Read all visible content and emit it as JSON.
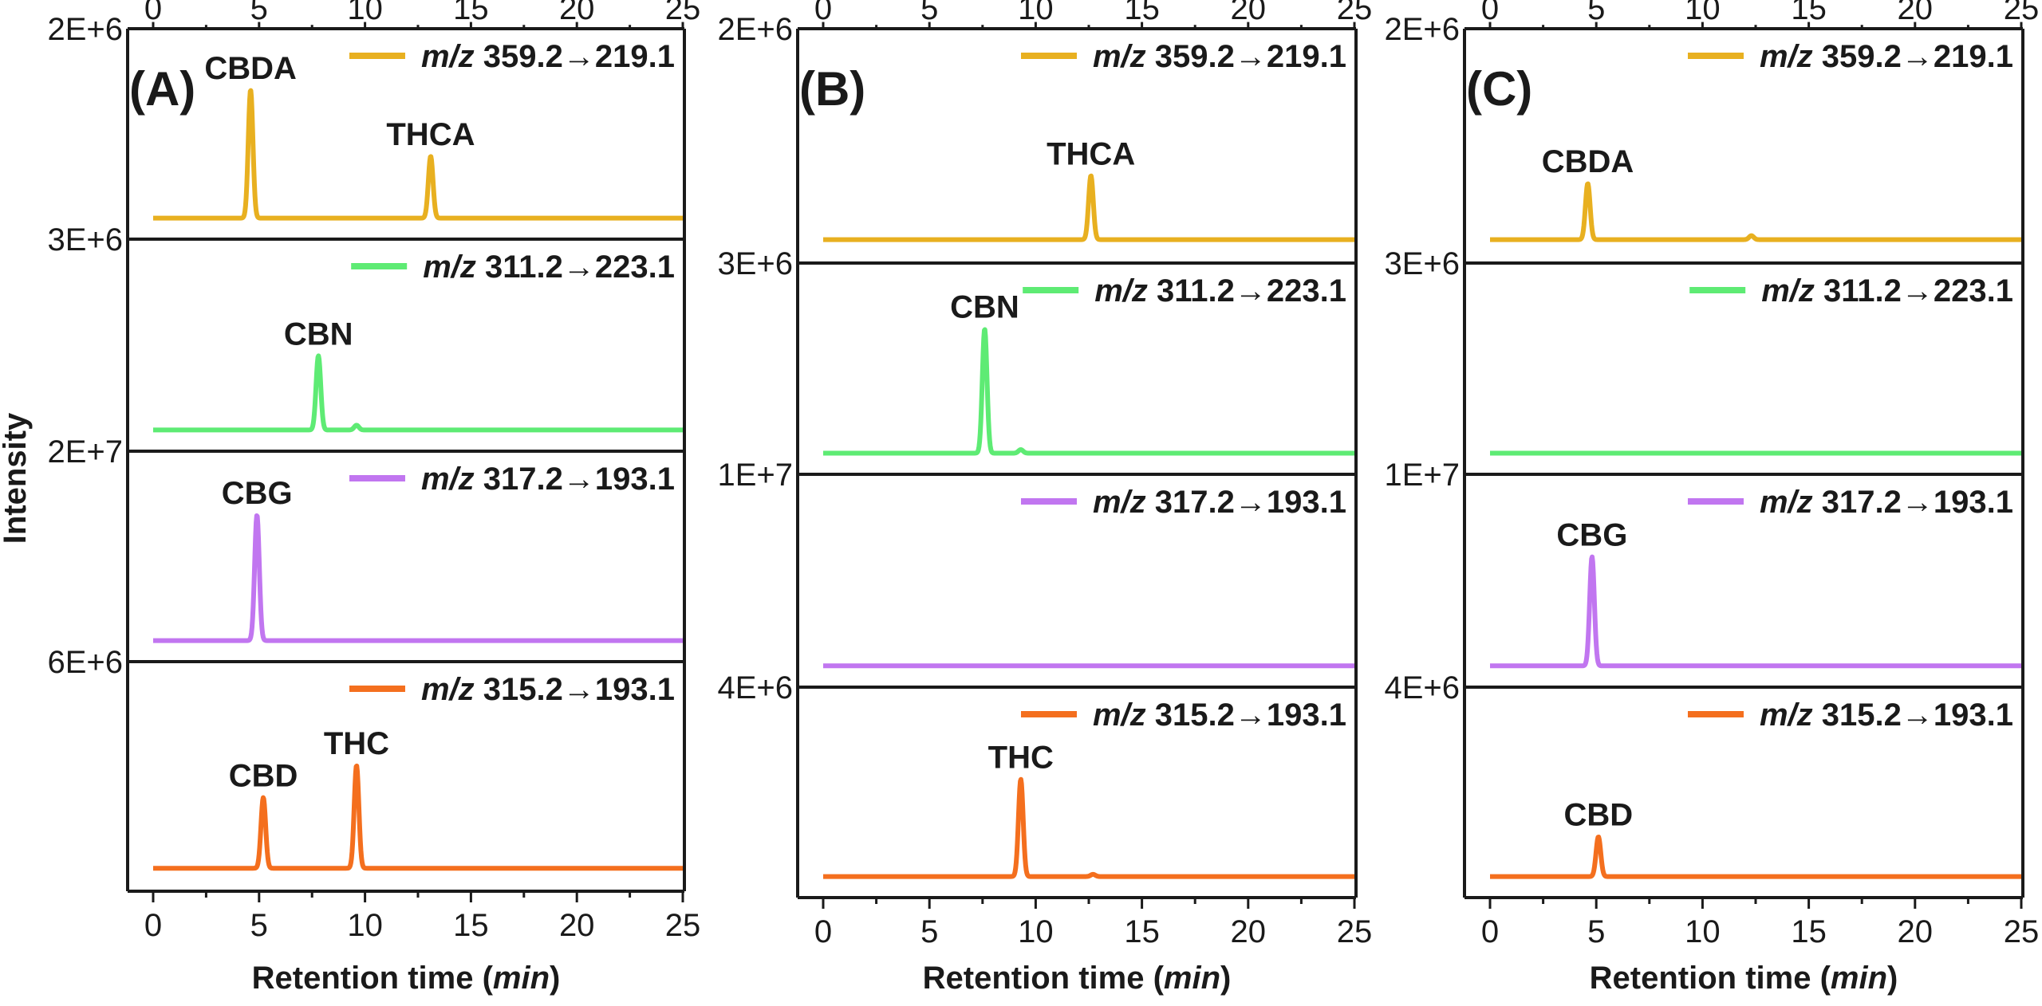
{
  "chart_data": {
    "type": "line",
    "ylabel": "Intensity",
    "xlabel": "Retention time",
    "xlabel_unit": "min",
    "xlim": [
      0,
      25
    ],
    "xticks": [
      0,
      5,
      10,
      15,
      20,
      25
    ],
    "grid": false,
    "legend_placement": "top-right",
    "colors": {
      "m359": "#E8B020",
      "m311": "#5EEB74",
      "m317": "#C176F0",
      "m315": "#F46F1E"
    },
    "transitions": {
      "m359": {
        "mz": "m/z",
        "precursor": "359.2",
        "arrow": "→",
        "product": "219.1"
      },
      "m311": {
        "mz": "m/z",
        "precursor": "311.2",
        "arrow": "→",
        "product": "223.1"
      },
      "m317": {
        "mz": "m/z",
        "precursor": "317.2",
        "arrow": "→",
        "product": "193.1"
      },
      "m315": {
        "mz": "m/z",
        "precursor": "315.2",
        "arrow": "→",
        "product": "193.1"
      }
    },
    "panels": [
      {
        "letter": "(A)",
        "strips": [
          {
            "channel": "m359",
            "ymax_label": "2E+6",
            "ymax": 2000000,
            "peaks": [
              {
                "name": "CBDA",
                "rt": 4.6,
                "height": 1450000
              },
              {
                "name": "THCA",
                "rt": 13.1,
                "height": 700000
              }
            ]
          },
          {
            "channel": "m311",
            "ymax_label": "3E+6",
            "ymax": 3000000,
            "peaks": [
              {
                "name": "CBN",
                "rt": 7.8,
                "height": 1250000
              },
              {
                "name": "",
                "rt": 9.6,
                "height": 80000
              }
            ]
          },
          {
            "channel": "m317",
            "ymax_label": "2E+7",
            "ymax": 20000000,
            "peaks": [
              {
                "name": "CBG",
                "rt": 4.9,
                "height": 14200000
              }
            ]
          },
          {
            "channel": "m315",
            "ymax_label": "6E+6",
            "ymax": 6000000,
            "peaks": [
              {
                "name": "CBD",
                "rt": 5.2,
                "height": 2200000
              },
              {
                "name": "THC",
                "rt": 9.6,
                "height": 3200000
              }
            ]
          }
        ]
      },
      {
        "letter": "(B)",
        "strips": [
          {
            "channel": "m359",
            "ymax_label": "2E+6",
            "ymax": 2000000,
            "peaks": [
              {
                "name": "THCA",
                "rt": 12.6,
                "height": 650000
              }
            ]
          },
          {
            "channel": "m311",
            "ymax_label": "3E+6",
            "ymax": 3000000,
            "peaks": [
              {
                "name": "CBN",
                "rt": 7.6,
                "height": 2100000
              },
              {
                "name": "",
                "rt": 9.3,
                "height": 60000
              }
            ]
          },
          {
            "channel": "m317",
            "ymax_label": "1E+7",
            "ymax": 10000000,
            "peaks": []
          },
          {
            "channel": "m315",
            "ymax_label": "4E+6",
            "ymax": 4000000,
            "peaks": [
              {
                "name": "THC",
                "rt": 9.3,
                "height": 2200000
              },
              {
                "name": "",
                "rt": 12.7,
                "height": 50000
              }
            ]
          }
        ]
      },
      {
        "letter": "(C)",
        "strips": [
          {
            "channel": "m359",
            "ymax_label": "2E+6",
            "ymax": 2000000,
            "peaks": [
              {
                "name": "CBDA",
                "rt": 4.6,
                "height": 570000
              },
              {
                "name": "",
                "rt": 12.3,
                "height": 40000
              }
            ]
          },
          {
            "channel": "m311",
            "ymax_label": "3E+6",
            "ymax": 3000000,
            "peaks": []
          },
          {
            "channel": "m317",
            "ymax_label": "1E+7",
            "ymax": 10000000,
            "peaks": [
              {
                "name": "CBG",
                "rt": 4.8,
                "height": 6100000
              }
            ]
          },
          {
            "channel": "m315",
            "ymax_label": "4E+6",
            "ymax": 4000000,
            "peaks": [
              {
                "name": "CBD",
                "rt": 5.1,
                "height": 900000
              }
            ]
          }
        ]
      }
    ]
  }
}
